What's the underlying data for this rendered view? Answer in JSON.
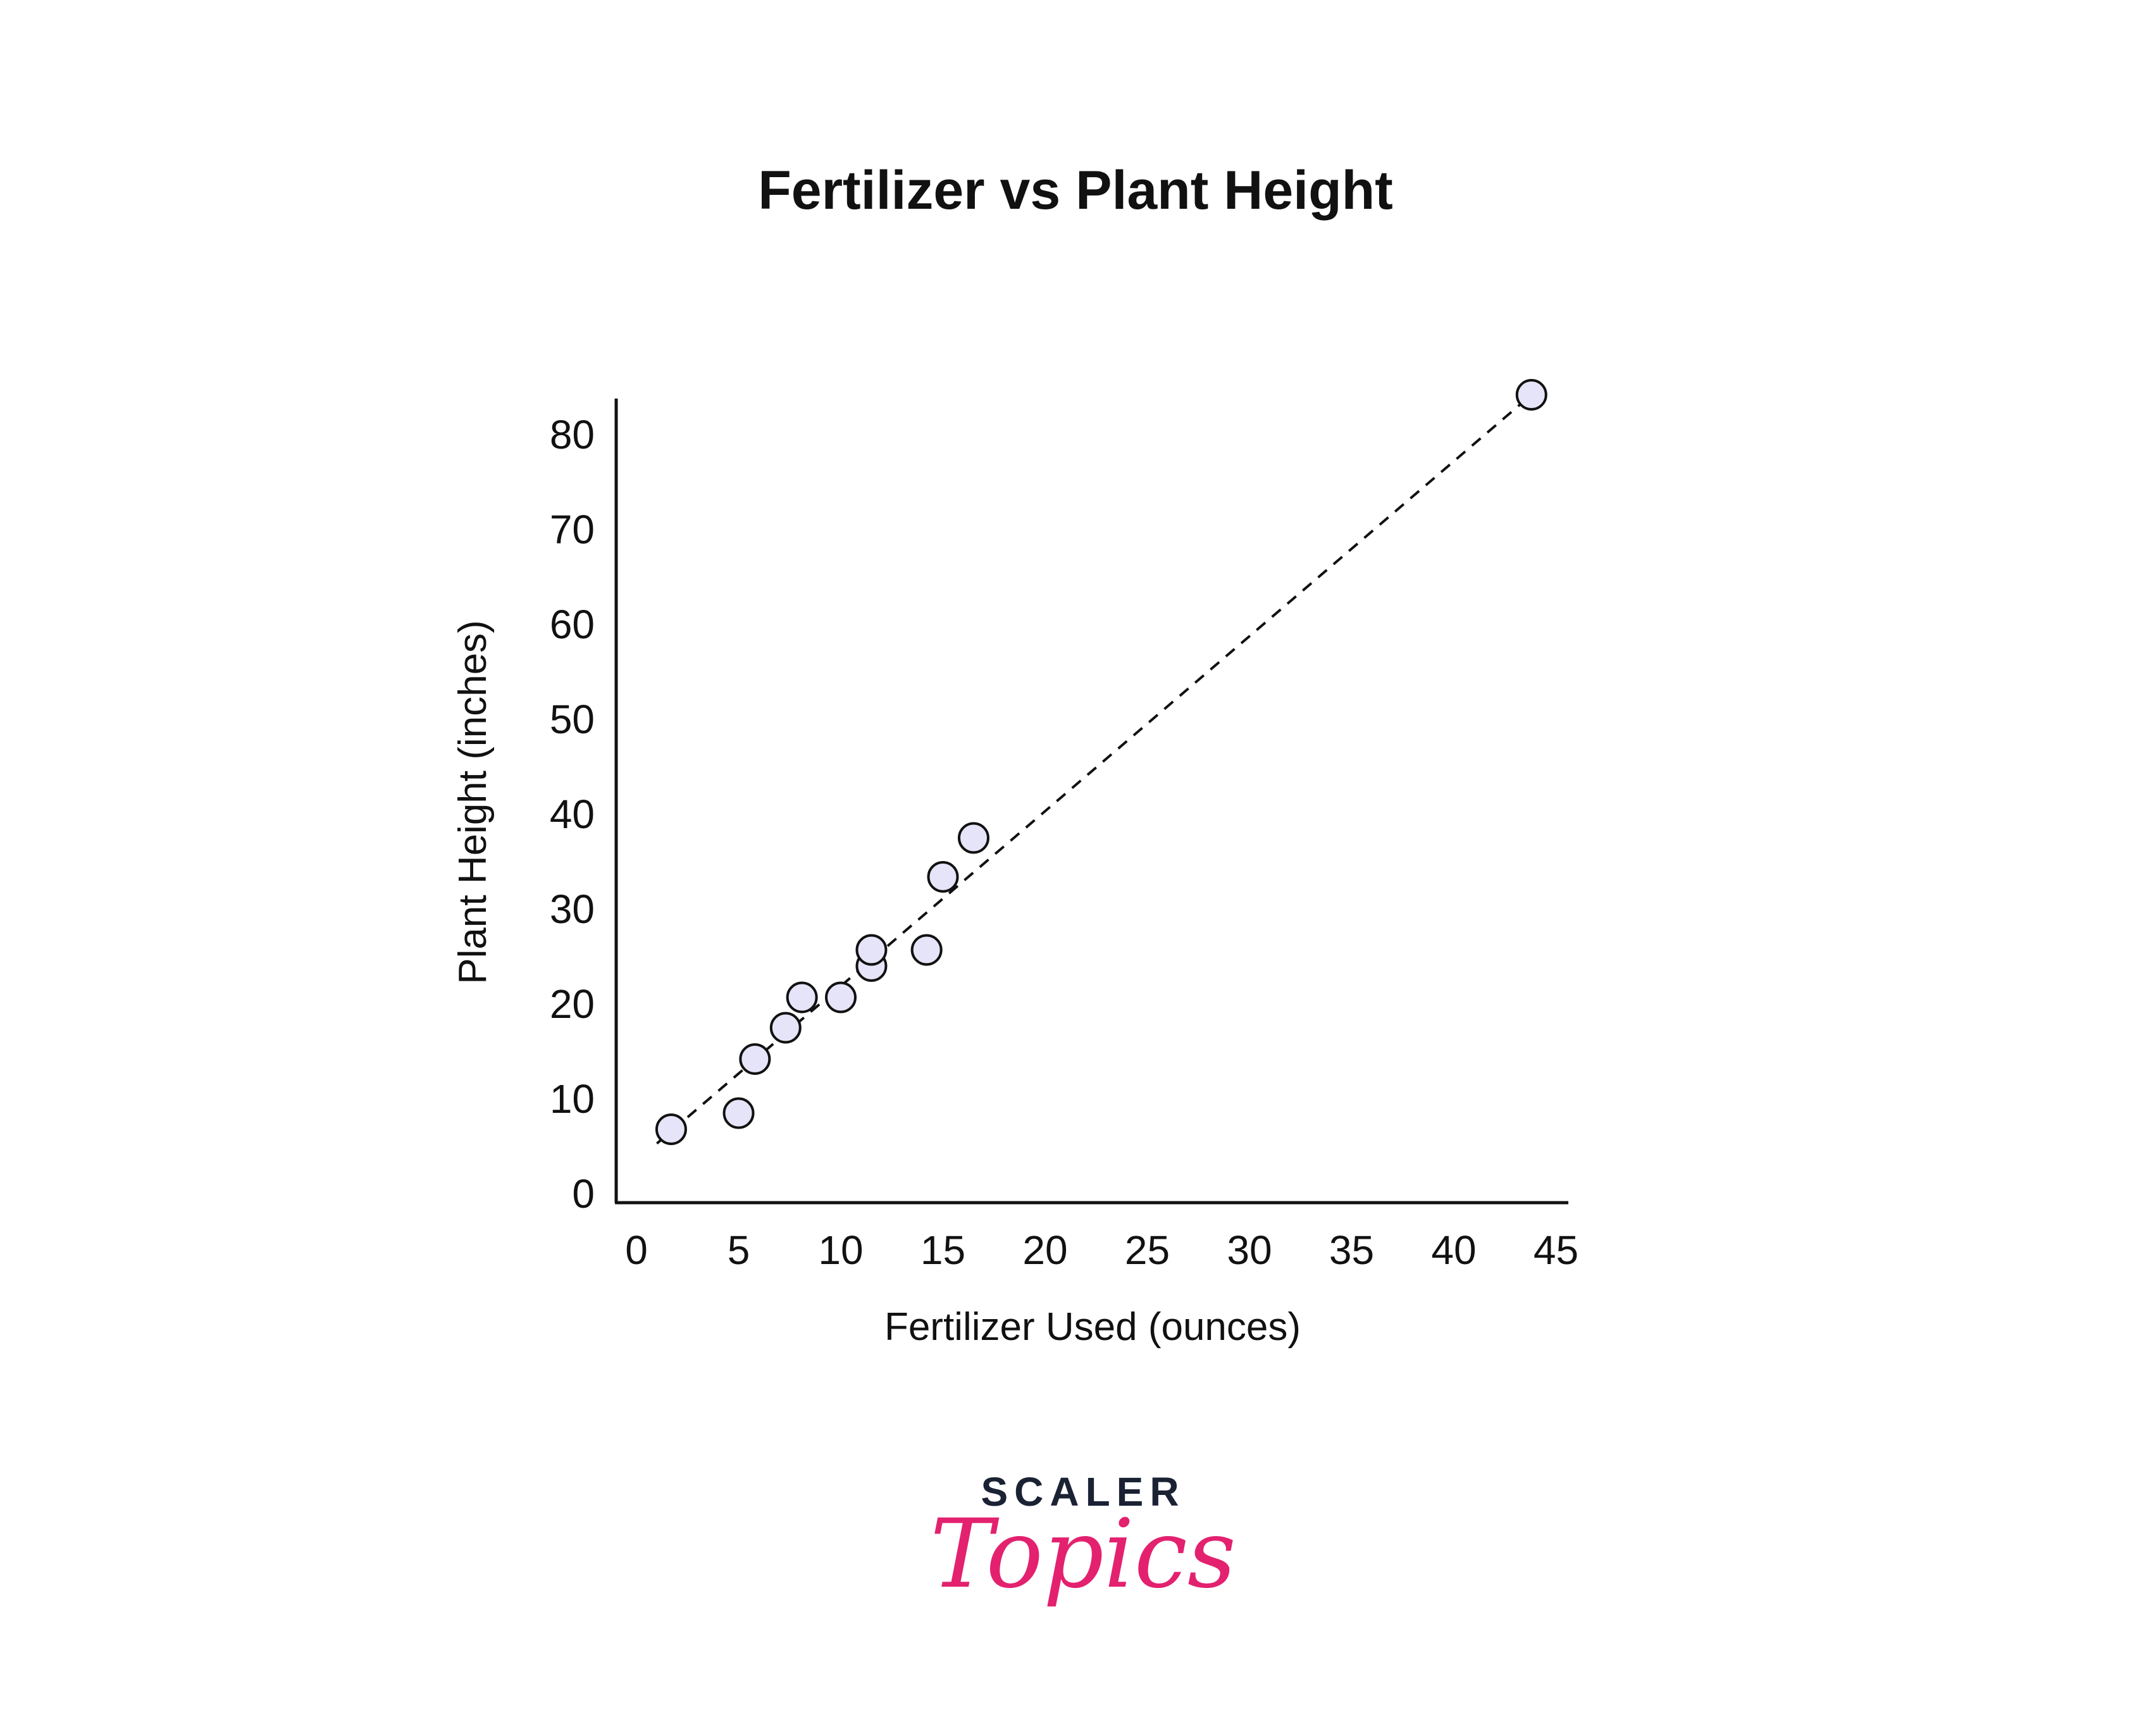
{
  "chart_data": {
    "type": "scatter",
    "title": "Fertilizer vs Plant Height",
    "xlabel": "Fertilizer Used (ounces)",
    "ylabel": "Plant Height (inches)",
    "xlim": [
      0,
      45
    ],
    "ylim": [
      0,
      80
    ],
    "x_ticks": [
      0,
      5,
      10,
      15,
      20,
      25,
      30,
      35,
      40,
      45
    ],
    "y_ticks": [
      0,
      10,
      20,
      30,
      40,
      50,
      60,
      70,
      80
    ],
    "grid": false,
    "legend": "none",
    "marker_fill": "#e6e4f8",
    "marker_stroke": "#111111",
    "points": [
      {
        "x": 1.7,
        "y": 6.8
      },
      {
        "x": 5.0,
        "y": 8.5
      },
      {
        "x": 5.8,
        "y": 14.2
      },
      {
        "x": 7.3,
        "y": 17.5
      },
      {
        "x": 8.1,
        "y": 20.7
      },
      {
        "x": 10.0,
        "y": 20.7
      },
      {
        "x": 11.5,
        "y": 24.0
      },
      {
        "x": 11.5,
        "y": 25.7
      },
      {
        "x": 14.2,
        "y": 25.7
      },
      {
        "x": 15.0,
        "y": 33.4
      },
      {
        "x": 16.5,
        "y": 37.5
      },
      {
        "x": 43.8,
        "y": 84.2
      }
    ],
    "trendline": {
      "style": "dashed",
      "from": {
        "x": 1.0,
        "y": 5.3
      },
      "to": {
        "x": 43.8,
        "y": 84.2
      }
    }
  },
  "branding": {
    "line1": "SCALER",
    "line2": "Topics",
    "line1_color": "#1a2233",
    "line2_color": "#e3216f"
  }
}
